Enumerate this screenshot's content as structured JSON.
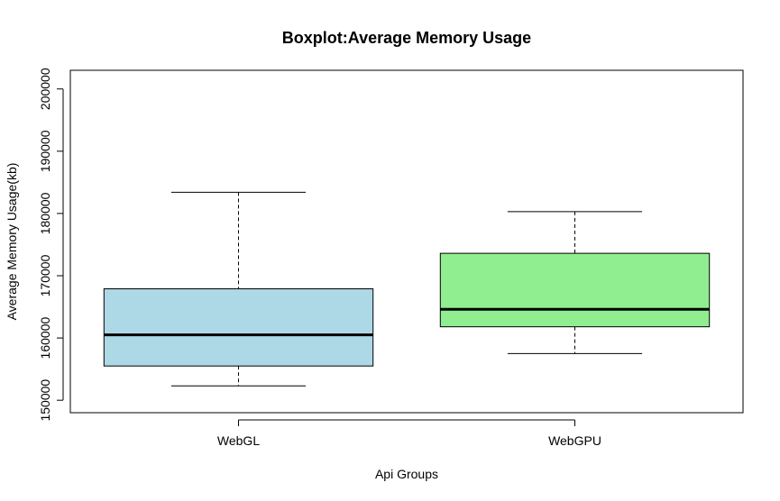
{
  "chart_data": {
    "type": "boxplot",
    "title": "Boxplot:Average Memory Usage",
    "xlabel": "Api Groups",
    "ylabel": "Average Memory Usage(kb)",
    "ylim": [
      148000,
      203000
    ],
    "yticks": [
      150000,
      160000,
      170000,
      180000,
      190000,
      200000
    ],
    "categories": [
      "WebGL",
      "WebGPU"
    ],
    "boxes": [
      {
        "name": "WebGL",
        "whisker_low": 152300,
        "q1": 155500,
        "median": 160500,
        "q3": 167900,
        "whisker_high": 183400,
        "color": "#add8e6"
      },
      {
        "name": "WebGPU",
        "whisker_low": 157500,
        "q1": 161800,
        "median": 164600,
        "q3": 173600,
        "whisker_high": 180300,
        "color": "#90ee90"
      }
    ],
    "grid": false,
    "legend": "none"
  }
}
